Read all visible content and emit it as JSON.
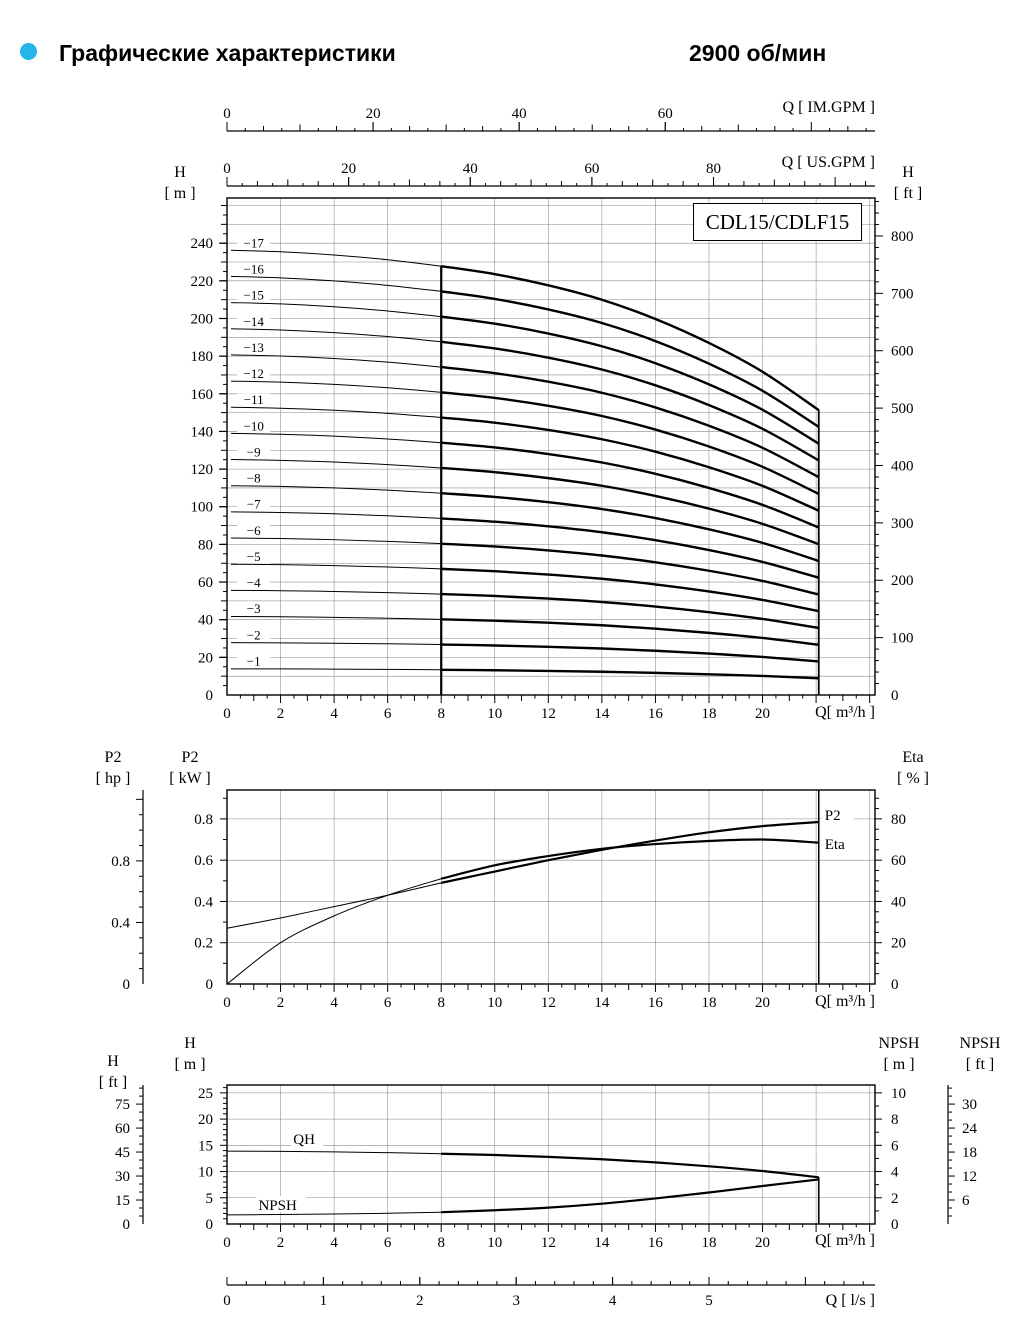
{
  "header": {
    "bullet_color": "#25b5e8",
    "title": "Графические характеристики",
    "rpm": "2900 об/мин"
  },
  "chart_data": [
    {
      "id": "head_flow_curves",
      "type": "line",
      "title": "CDL15/CDLF15",
      "x_axis": {
        "label": "Q[ m³/h ]",
        "min": 0,
        "max": 24.2,
        "grid_step": 2,
        "tick_labels": [
          0,
          2,
          4,
          6,
          8,
          10,
          12,
          14,
          16,
          18,
          20
        ]
      },
      "x_axis_top_us": {
        "label": "Q [ US.GPM ]",
        "gpm_per_m3h": 4.403,
        "tick_labels": [
          0,
          20,
          40,
          60,
          80
        ]
      },
      "x_axis_top_im": {
        "label": "Q [ IM.GPM ]",
        "gpm_per_m3h": 3.666,
        "tick_labels": [
          0,
          20,
          40,
          60
        ]
      },
      "y_axis_left": {
        "label": "H",
        "unit": "[ m ]",
        "min": 0,
        "max": 264,
        "grid_step": 10,
        "tick_labels": [
          0,
          20,
          40,
          60,
          80,
          100,
          120,
          140,
          160,
          180,
          200,
          220,
          240
        ]
      },
      "y_axis_right": {
        "label": "H",
        "unit": "[ ft ]",
        "m_per_ft": 0.3048,
        "tick_labels": [
          0,
          100,
          200,
          300,
          400,
          500,
          600,
          700,
          800
        ]
      },
      "duty_range": {
        "q_start": 8,
        "q_end": 22.1
      },
      "q_points": [
        0,
        2,
        4,
        6,
        8,
        10,
        12,
        14,
        16,
        18,
        20,
        22.1
      ],
      "single_stage_head_m": [
        13.9,
        13.85,
        13.75,
        13.6,
        13.4,
        13.15,
        12.8,
        12.35,
        11.75,
        11.0,
        10.1,
        8.9
      ],
      "stage_curves": [
        {
          "label": "−1",
          "stages": 1
        },
        {
          "label": "−2",
          "stages": 2
        },
        {
          "label": "−3",
          "stages": 3
        },
        {
          "label": "−4",
          "stages": 4
        },
        {
          "label": "−5",
          "stages": 5
        },
        {
          "label": "−6",
          "stages": 6
        },
        {
          "label": "−7",
          "stages": 7
        },
        {
          "label": "−8",
          "stages": 8
        },
        {
          "label": "−9",
          "stages": 9
        },
        {
          "label": "−10",
          "stages": 10
        },
        {
          "label": "−11",
          "stages": 11
        },
        {
          "label": "−12",
          "stages": 12
        },
        {
          "label": "−13",
          "stages": 13
        },
        {
          "label": "−14",
          "stages": 14
        },
        {
          "label": "−15",
          "stages": 15
        },
        {
          "label": "−16",
          "stages": 16
        },
        {
          "label": "−17",
          "stages": 17
        }
      ]
    },
    {
      "id": "power_efficiency",
      "type": "line",
      "x_axis": {
        "label": "Q[ m³/h ]",
        "min": 0,
        "max": 24.2,
        "grid_step": 2,
        "tick_labels": [
          0,
          2,
          4,
          6,
          8,
          10,
          12,
          14,
          16,
          18,
          20
        ]
      },
      "y_axis_kw": {
        "label": "P2",
        "unit": "[ kW ]",
        "min": 0,
        "max": 0.94,
        "grid_step": 0.2,
        "tick_labels": [
          0,
          0.2,
          0.4,
          0.6,
          0.8
        ]
      },
      "y_axis_hp": {
        "label": "P2",
        "unit": "[ hp ]",
        "kw_per_hp": 0.7457,
        "tick_labels": [
          0,
          0.4,
          0.8
        ]
      },
      "y_axis_eta": {
        "label": "Eta",
        "unit": "[ % ]",
        "kw_per_pct": 0.01,
        "tick_labels": [
          0,
          20,
          40,
          60,
          80
        ]
      },
      "duty_range": {
        "q_start": 8,
        "q_end": 22.1
      },
      "series": [
        {
          "name": "P2",
          "q": [
            0,
            2,
            4,
            6,
            8,
            10,
            12,
            14,
            16,
            18,
            20,
            22.1
          ],
          "kw": [
            0.27,
            0.32,
            0.375,
            0.43,
            0.49,
            0.545,
            0.6,
            0.65,
            0.695,
            0.735,
            0.765,
            0.785
          ]
        },
        {
          "name": "Eta",
          "q": [
            0,
            2,
            4,
            6,
            8,
            10,
            12,
            14,
            16,
            18,
            20,
            22.1
          ],
          "pct": [
            0,
            20,
            33,
            43,
            51,
            57.5,
            62,
            65.5,
            67.8,
            69.3,
            70,
            68.5
          ]
        }
      ]
    },
    {
      "id": "qh_npsh",
      "type": "line",
      "x_axis": {
        "label": "Q[ m³/h ]",
        "min": 0,
        "max": 24.2,
        "grid_step": 2,
        "tick_labels": [
          0,
          2,
          4,
          6,
          8,
          10,
          12,
          14,
          16,
          18,
          20
        ]
      },
      "x_axis_ls": {
        "label": "Q [ l/s ]",
        "m3h_per_ls": 3.6,
        "tick_labels": [
          0,
          1,
          2,
          3,
          4,
          5
        ]
      },
      "y_axis_h_m": {
        "label": "H",
        "unit": "[ m ]",
        "min": 0,
        "max": 26.5,
        "grid_step": 5,
        "tick_labels": [
          0,
          5,
          10,
          15,
          20,
          25
        ]
      },
      "y_axis_h_ft": {
        "label": "H",
        "unit": "[ ft ]",
        "m_per_ft": 0.3048,
        "tick_labels": [
          0,
          15,
          30,
          45,
          60,
          75
        ]
      },
      "y_axis_npsh_m": {
        "label": "NPSH",
        "unit": "[ m ]",
        "min": 0,
        "max": 10.6,
        "tick_labels": [
          0,
          2,
          4,
          6,
          8,
          10
        ]
      },
      "y_axis_npsh_ft": {
        "label": "NPSH",
        "unit": "[ ft ]",
        "m_per_ft": 0.3048,
        "tick_labels": [
          6,
          12,
          18,
          24,
          30
        ]
      },
      "duty_range": {
        "q_start": 8,
        "q_end": 22.1
      },
      "series": [
        {
          "name": "QH",
          "q": [
            0,
            2,
            4,
            6,
            8,
            10,
            12,
            14,
            16,
            18,
            20,
            22.1
          ],
          "h_m": [
            13.9,
            13.85,
            13.75,
            13.6,
            13.4,
            13.15,
            12.8,
            12.35,
            11.75,
            11.0,
            10.1,
            8.9
          ]
        },
        {
          "name": "NPSH",
          "q": [
            0,
            2,
            4,
            6,
            8,
            10,
            12,
            14,
            16,
            18,
            20,
            22.1
          ],
          "npsh_m": [
            0.7,
            0.72,
            0.76,
            0.82,
            0.9,
            1.05,
            1.25,
            1.55,
            1.95,
            2.4,
            2.9,
            3.4
          ]
        }
      ]
    }
  ]
}
